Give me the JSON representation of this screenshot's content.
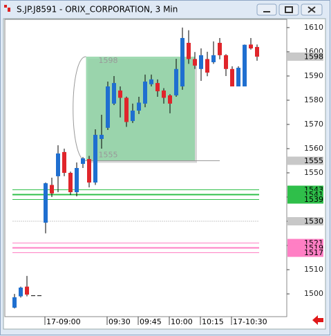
{
  "chart_data": {
    "type": "candlestick",
    "title": "S.JP.J8591 - ORIX_CORPORATION, 3 Min",
    "up_color": "#1f6fd0",
    "down_color": "#e0252b",
    "categories": [
      null,
      null,
      null,
      null,
      null,
      "17-09:00",
      null,
      null,
      null,
      null,
      null,
      null,
      null,
      null,
      null,
      "09:30",
      null,
      null,
      null,
      null,
      "09:45",
      null,
      null,
      null,
      null,
      "10:00",
      null,
      null,
      null,
      null,
      "10:15",
      null,
      null,
      null,
      null,
      "17-10:30",
      null,
      null,
      null,
      null
    ],
    "open": [
      1494.3,
      1499,
      1503,
      1499.4,
      1499.4,
      1529.4,
      1545,
      1548.6,
      1558.6,
      1550,
      1542,
      1553.7,
      1555.7,
      1546,
      1564,
      1568.6,
      1578.6,
      1584,
      1581,
      1571.4,
      1575.7,
      1578.6,
      1586.6,
      1587.1,
      1584,
      1582,
      1582,
      1585.7,
      1603.7,
      1597,
      1592.9,
      1597,
      1595.7,
      1603.7,
      1598.6,
      1592.9,
      1585.7,
      1585.7,
      1603,
      1602
    ],
    "high": [
      1500,
      1503,
      1507.4,
      1499.4,
      1499.4,
      1546,
      1548,
      1561.4,
      1560,
      1550.5,
      1554.3,
      1556.5,
      1557,
      1568,
      1574,
      1587.7,
      1590,
      1585.7,
      1581.5,
      1578.6,
      1581.4,
      1590.6,
      1590.6,
      1588.6,
      1585,
      1582.5,
      1597.1,
      1610,
      1608.9,
      1599.9,
      1601.4,
      1600,
      1604.3,
      1605.7,
      1599,
      1594,
      1594,
      1603,
      1605.7,
      1603
    ],
    "low": [
      1494,
      1498.5,
      1499,
      1499.4,
      1499.4,
      1525,
      1540,
      1542,
      1548.6,
      1540.9,
      1540.3,
      1552,
      1544,
      1545,
      1560,
      1567.7,
      1578,
      1572.9,
      1569,
      1570.6,
      1574.3,
      1577.1,
      1585.7,
      1581.4,
      1578.6,
      1574.6,
      1581.4,
      1584.3,
      1595,
      1592.9,
      1588,
      1589.9,
      1595,
      1596.9,
      1590,
      1585.7,
      1585.7,
      1585.7,
      1600.9,
      1596.3
    ],
    "close": [
      1498.6,
      1502.6,
      1499.7,
      1499.4,
      1499.4,
      1545.7,
      1541.5,
      1558,
      1550,
      1542,
      1552,
      1556,
      1546,
      1565.7,
      1565.7,
      1585.7,
      1587.1,
      1581,
      1571,
      1575.7,
      1579,
      1587.7,
      1588.6,
      1583.7,
      1581,
      1578.6,
      1592.9,
      1605.7,
      1597,
      1594.3,
      1598.6,
      1591.4,
      1598.6,
      1598.6,
      1592.9,
      1585.7,
      1593.4,
      1602.9,
      1601.4,
      1598
    ],
    "ylim": [
      1490.6,
      1613.4
    ],
    "yticks": [
      1500,
      1510,
      1520,
      1530,
      1540,
      1550,
      1560,
      1570,
      1580,
      1590,
      1600,
      1610
    ],
    "box": {
      "high": 1598,
      "low": 1555,
      "from_bar": 12,
      "to_bar": 29,
      "color": "#8fd4a4"
    },
    "levels": [
      {
        "value": 1598,
        "color": "#c8c8c8",
        "width": 0
      },
      {
        "value": 1555,
        "color": "#c8c8c8",
        "width": 0
      },
      {
        "value": 1543,
        "color": "#2fbf4a",
        "width": 1
      },
      {
        "value": 1541,
        "color": "#2fbf4a",
        "width": 2
      },
      {
        "value": 1539,
        "color": "#2fbf4a",
        "width": 1
      },
      {
        "value": 1530,
        "color": "#c8c8c8",
        "width": 1
      },
      {
        "value": 1521,
        "color": "#ff7fc4",
        "width": 1
      },
      {
        "value": 1519,
        "color": "#ff7fc4",
        "width": 2
      },
      {
        "value": 1517,
        "color": "#ff7fc4",
        "width": 1
      }
    ]
  }
}
